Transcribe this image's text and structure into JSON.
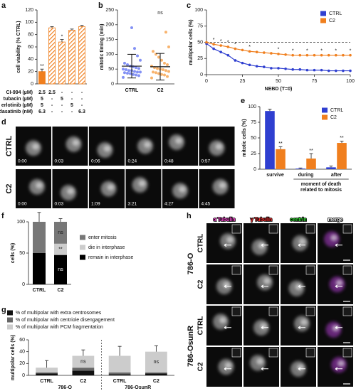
{
  "chart_data": [
    {
      "type": "bar",
      "panel": "a",
      "ylabel": "cell viability (% CTRL)",
      "ylim": [
        0,
        120
      ],
      "yticks": [
        0,
        20,
        40,
        60,
        80,
        100,
        120
      ],
      "values": [
        20,
        91,
        68,
        87,
        93
      ],
      "errors": [
        4,
        2,
        4,
        2,
        2
      ],
      "color": "#f07f1e",
      "hatched": [
        false,
        true,
        true,
        true,
        true
      ],
      "annotations": [
        "**",
        null,
        "*",
        null,
        null
      ],
      "table": {
        "rows": [
          "CI-994 (µM)",
          "tubacin (µM)",
          "erlotinib (µM)",
          "dasatinib (nM)"
        ],
        "cells": [
          [
            "2.5",
            "2.5",
            "-",
            "-",
            "-"
          ],
          [
            "5",
            "-",
            "5",
            "-",
            "-"
          ],
          [
            "5",
            "-",
            "-",
            "5",
            "-"
          ],
          [
            "6.3",
            "-",
            "-",
            "-",
            "6.3"
          ]
        ]
      }
    },
    {
      "type": "strip",
      "panel": "b",
      "ylabel": "mitotic timing (min)",
      "ylim": [
        0,
        250
      ],
      "yticks": [
        0,
        50,
        100,
        150,
        200,
        250
      ],
      "categories": [
        "CTRL",
        "C2"
      ],
      "annotation": "ns",
      "groups": [
        {
          "color": "#5a6cf0",
          "mean": 60,
          "sd": 40,
          "values": [
            22,
            28,
            30,
            32,
            35,
            36,
            38,
            40,
            40,
            42,
            45,
            45,
            48,
            50,
            52,
            55,
            58,
            60,
            65,
            70,
            80,
            95,
            120,
            190
          ]
        },
        {
          "color": "#f59a3c",
          "mean": 58,
          "sd": 45,
          "values": [
            20,
            25,
            30,
            32,
            35,
            38,
            40,
            42,
            45,
            48,
            50,
            52,
            55,
            60,
            65,
            70,
            80,
            90,
            100,
            110,
            125,
            175
          ]
        }
      ]
    },
    {
      "type": "line",
      "panel": "c",
      "xlabel": "NEBD (T=0)",
      "ylabel": "multipolar cells (%)",
      "x": [
        0,
        5,
        10,
        15,
        20,
        25,
        30,
        35,
        40,
        45,
        50,
        55,
        60,
        65,
        70,
        75,
        80,
        85,
        90,
        95,
        100
      ],
      "xlim": [
        0,
        100
      ],
      "xticks": [
        0,
        25,
        50,
        75,
        100
      ],
      "ylim": [
        0,
        100
      ],
      "yticks": [
        0,
        25,
        50,
        75,
        100
      ],
      "reference_line": 50,
      "legend": "top-right",
      "series": [
        {
          "name": "CTRL",
          "color": "#2f3fd0",
          "values": [
            48,
            40,
            35,
            30,
            22,
            18,
            15,
            13,
            12,
            10,
            10,
            9,
            8,
            8,
            7,
            7,
            7,
            6,
            6,
            6,
            6
          ]
        },
        {
          "name": "C2",
          "color": "#f07f1e",
          "values": [
            50,
            47,
            45,
            43,
            40,
            38,
            36,
            35,
            34,
            33,
            32,
            31,
            30,
            30,
            30,
            30,
            30,
            30,
            30,
            30,
            30
          ]
        }
      ],
      "annotations": [
        {
          "x": 5,
          "text": "*"
        },
        {
          "x": 10,
          "text": "*"
        },
        {
          "x": 15,
          "text": "*"
        },
        {
          "x": 20,
          "text": "*"
        },
        {
          "x": 30,
          "text": "*"
        },
        {
          "x": 50,
          "text": "*"
        },
        {
          "x": 60,
          "text": "*"
        },
        {
          "x": 70,
          "text": "*"
        },
        {
          "x": 80,
          "text": "*"
        },
        {
          "x": 90,
          "text": "*"
        },
        {
          "x": 100,
          "text": "*"
        }
      ]
    },
    {
      "type": "grouped_bar",
      "panel": "e",
      "ylabel": "mitotic cells (%)",
      "xlabel": [
        "moment of death",
        "related to mitosis"
      ],
      "categories": [
        "survive",
        "during",
        "after"
      ],
      "ylim": [
        0,
        100
      ],
      "yticks": [
        0,
        25,
        50,
        75,
        100
      ],
      "legend": "top-right",
      "series": [
        {
          "name": "CTRL",
          "color": "#2f3fd0",
          "values": [
            93,
            1,
            3
          ],
          "errors": [
            3,
            1,
            2
          ],
          "annotations": [
            null,
            null,
            null
          ]
        },
        {
          "name": "C2",
          "color": "#f07f1e",
          "values": [
            32,
            17,
            42
          ],
          "errors": [
            4,
            8,
            3
          ],
          "annotations": [
            "**",
            "**",
            "**"
          ]
        }
      ]
    },
    {
      "type": "stacked_bar",
      "panel": "f",
      "ylabel": "cells (%)",
      "categories": [
        "CTRL",
        "C2"
      ],
      "ylim": [
        0,
        100
      ],
      "yticks": [
        0,
        50,
        100
      ],
      "legend": "right",
      "series": [
        {
          "name": "remain in interphase",
          "color": "#000000",
          "values": [
            50,
            47
          ],
          "errors": [
            18,
            8
          ],
          "annotations": [
            null,
            "ns"
          ]
        },
        {
          "name": "die in interphase",
          "color": "#cccccc",
          "values": [
            0,
            18
          ],
          "errors": [
            0,
            0
          ],
          "annotations": [
            null,
            "**"
          ]
        },
        {
          "name": "enter mitosis",
          "color": "#777777",
          "values": [
            50,
            35
          ],
          "errors": [
            15,
            5
          ],
          "annotations": [
            null,
            "ns"
          ]
        }
      ]
    },
    {
      "type": "stacked_bar",
      "panel": "g",
      "ylabel": "multipolar cells (%)",
      "categories": [
        "CTRL",
        "C2",
        "CTRL",
        "C2"
      ],
      "groups": [
        "786-O",
        "786-OsunR"
      ],
      "ylim": [
        0,
        60
      ],
      "yticks": [
        0,
        20,
        40,
        60
      ],
      "legend": "top",
      "series": [
        {
          "name": "% of multipolar with extra centrosomes",
          "color": "#111111",
          "values": [
            3,
            8,
            2,
            3
          ],
          "errors": [
            0,
            0,
            0,
            0
          ],
          "annotations": [
            null,
            null,
            null,
            null
          ]
        },
        {
          "name": "% of multipolar with centriole disengagement",
          "color": "#666666",
          "values": [
            2,
            5,
            3,
            2
          ],
          "errors": [
            0,
            0,
            0,
            0
          ],
          "annotations": [
            null,
            null,
            null,
            null
          ]
        },
        {
          "name": "% of multipolar with PCM fragmentation",
          "color": "#cccccc",
          "values": [
            8,
            20,
            28,
            35
          ],
          "errors": [
            12,
            10,
            16,
            10
          ],
          "annotations": [
            null,
            "ns",
            null,
            "ns"
          ]
        }
      ]
    }
  ],
  "image_panels": [
    {
      "panel": "d",
      "rows": [
        {
          "label": "CTRL",
          "times": [
            "0:00",
            "0:03",
            "0:06",
            "0:24",
            "0:48",
            "0:57"
          ]
        },
        {
          "label": "C2",
          "times": [
            "0:00",
            "0:03",
            "1:09",
            "3:21",
            "4:27",
            "4:45"
          ]
        }
      ]
    },
    {
      "panel": "h",
      "columns": [
        "α Tubulin",
        "γ Tubulin",
        "centrin",
        "merge"
      ],
      "column_colors": [
        "#ff4fd8",
        "#ff3333",
        "#33dd33",
        "#ffffff"
      ],
      "groups": [
        {
          "label": "786-O",
          "rows": [
            "CTRL",
            "C2"
          ]
        },
        {
          "label": "786-OsunR",
          "rows": [
            "CTRL",
            "C2"
          ]
        }
      ]
    }
  ]
}
